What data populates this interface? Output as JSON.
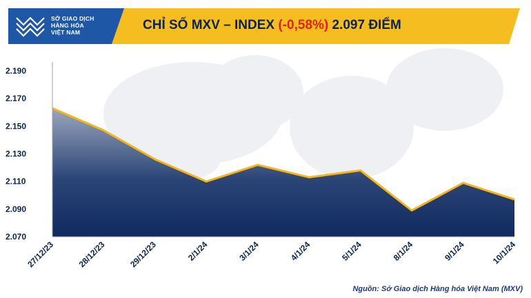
{
  "header": {
    "logo_lines": [
      "SỞ GIAO DỊCH",
      "HÀNG HÓA",
      "VIỆT NAM"
    ],
    "title_prefix": "CHỈ SỐ MXV – INDEX ",
    "title_change": "(-0,58%)",
    "title_suffix": " 2.097 ĐIỂM"
  },
  "colors": {
    "banner_yellow": "#f5bd1f",
    "banner_navy": "#0b2350",
    "logo_blue": "#1e57a6",
    "line": "#f5b51c",
    "area_top": "#9aa6bd",
    "area_bottom": "#0f2a5f",
    "change_red": "#e0201b"
  },
  "chart_data": {
    "type": "area",
    "categories": [
      "27/12/23",
      "28/12/23",
      "29/12/23",
      "2/1/24",
      "3/1/24",
      "4/1/24",
      "5/1/24",
      "8/1/24",
      "9/1/24",
      "10/1/24"
    ],
    "values": [
      2163,
      2147,
      2126,
      2110,
      2122,
      2113,
      2118,
      2089,
      2109,
      2097
    ],
    "yticks": [
      "2.190",
      "2.170",
      "2.150",
      "2.130",
      "2.110",
      "2.090",
      "2.070"
    ],
    "ytick_values": [
      2190,
      2170,
      2150,
      2130,
      2110,
      2090,
      2070
    ],
    "ylim": [
      2070,
      2200
    ],
    "grid": false,
    "legend": "none"
  },
  "footer": {
    "source": "Nguồn: Sở Giao dịch Hàng hóa Việt Nam (MXV)"
  }
}
